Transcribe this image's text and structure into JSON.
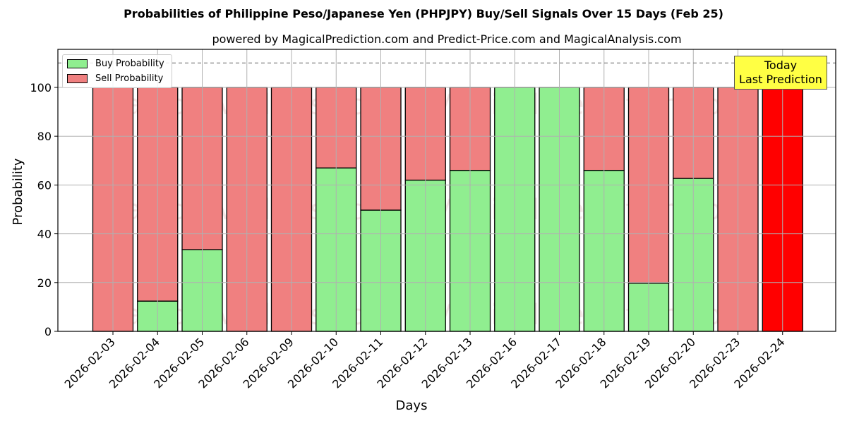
{
  "header": {
    "title": "Probabilities of Philippine Peso/Japanese Yen (PHPJPY) Buy/Sell Signals Over 15 Days (Feb 25)",
    "subtitle": "powered by MagicalPrediction.com and Predict-Price.com and MagicalAnalysis.com"
  },
  "legend": {
    "buy_label": "Buy Probability",
    "sell_label": "Sell Probability"
  },
  "annotation": {
    "line1": "Today",
    "line2": "Last Prediction"
  },
  "watermarks": [
    "MagicalAnalysis.com",
    "MagicalPrediction.com"
  ],
  "colors": {
    "buy": "#90ee90",
    "sell": "#f08080",
    "today_sell": "#ff0000",
    "annotation_bg": "#ffff44"
  },
  "chart_data": {
    "type": "bar",
    "stacked": true,
    "title": "Probabilities of Philippine Peso/Japanese Yen (PHPJPY) Buy/Sell Signals Over 15 Days (Feb 25)",
    "subtitle": "powered by MagicalPrediction.com and Predict-Price.com and MagicalAnalysis.com",
    "xlabel": "Days",
    "ylabel": "Probability",
    "ylim": [
      0,
      115
    ],
    "yticks": [
      0,
      20,
      40,
      60,
      80,
      100
    ],
    "grid": true,
    "legend_position": "upper left",
    "reference_line": {
      "y": 110,
      "style": "dashed"
    },
    "categories": [
      "2026-02-03",
      "2026-02-04",
      "2026-02-05",
      "2026-02-06",
      "2026-02-09",
      "2026-02-10",
      "2026-02-11",
      "2026-02-12",
      "2026-02-13",
      "2026-02-16",
      "2026-02-17",
      "2026-02-18",
      "2026-02-19",
      "2026-02-20",
      "2026-02-23",
      "2026-02-24"
    ],
    "series": [
      {
        "name": "Buy Probability",
        "values": [
          0,
          12.4,
          33.5,
          0,
          0,
          67,
          49.7,
          62,
          66,
          100,
          100,
          66,
          19.7,
          62.7,
          0,
          0
        ]
      },
      {
        "name": "Sell Probability",
        "values": [
          100,
          87.6,
          66.5,
          100,
          100,
          33,
          50.3,
          38,
          34,
          0,
          0,
          34,
          80.3,
          37.3,
          100,
          100
        ]
      }
    ],
    "highlight": {
      "category": "2026-02-24",
      "label": "Today Last Prediction"
    }
  }
}
